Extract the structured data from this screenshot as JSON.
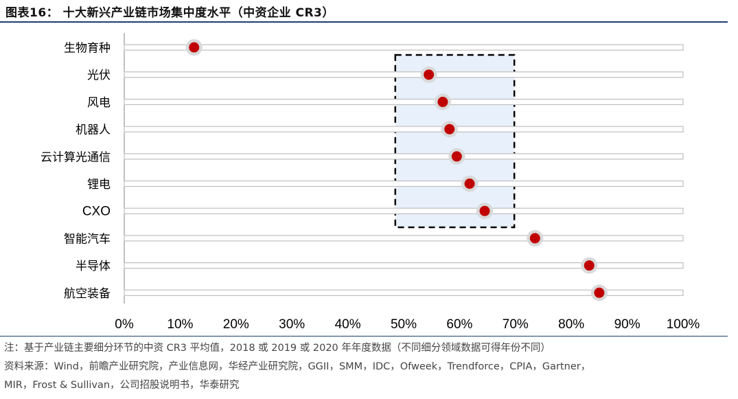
{
  "header": {
    "title": "图表16： 十大新兴产业链市场集中度水平（中资企业 CR3）"
  },
  "chart_data": {
    "type": "dot",
    "categories": [
      "生物育种",
      "光伏",
      "风电",
      "机器人",
      "云计算光通信",
      "锂电",
      "CXO",
      "智能汽车",
      "半导体",
      "航空装备"
    ],
    "values": [
      12.5,
      54.5,
      57,
      58.2,
      59.5,
      61.8,
      64.5,
      73.5,
      83.2,
      85
    ],
    "value_unit": "%",
    "xlim": [
      0,
      100
    ],
    "x_ticks": [
      "0%",
      "10%",
      "20%",
      "30%",
      "40%",
      "50%",
      "60%",
      "70%",
      "80%",
      "90%",
      "100%"
    ],
    "highlight_box": {
      "x_range": [
        48.5,
        69.8
      ],
      "categories": [
        "光伏",
        "锂电",
        "CXO",
        "风电",
        "机器人",
        "云计算光通信"
      ]
    },
    "colors": {
      "marker": "#c00000",
      "marker_halo": "#d9d9d9",
      "track": "#bfbfbf",
      "box_fill": "#e8f0fb",
      "box_border": "#000000"
    }
  },
  "notes": {
    "note": "注：基于产业链主要细分环节的中资 CR3 平均值，2018 或 2019 或 2020 年年度数据（不同细分领域数据可得年份不同）",
    "source_line1": "资料来源：Wind，前瞻产业研究院，产业信息网，华经产业研究院，GGII，SMM，IDC，Ofweek，Trendforce，CPIA，Gartner，",
    "source_line2": "MIR，Frost & Sullivan，公司招股说明书，华泰研究"
  }
}
